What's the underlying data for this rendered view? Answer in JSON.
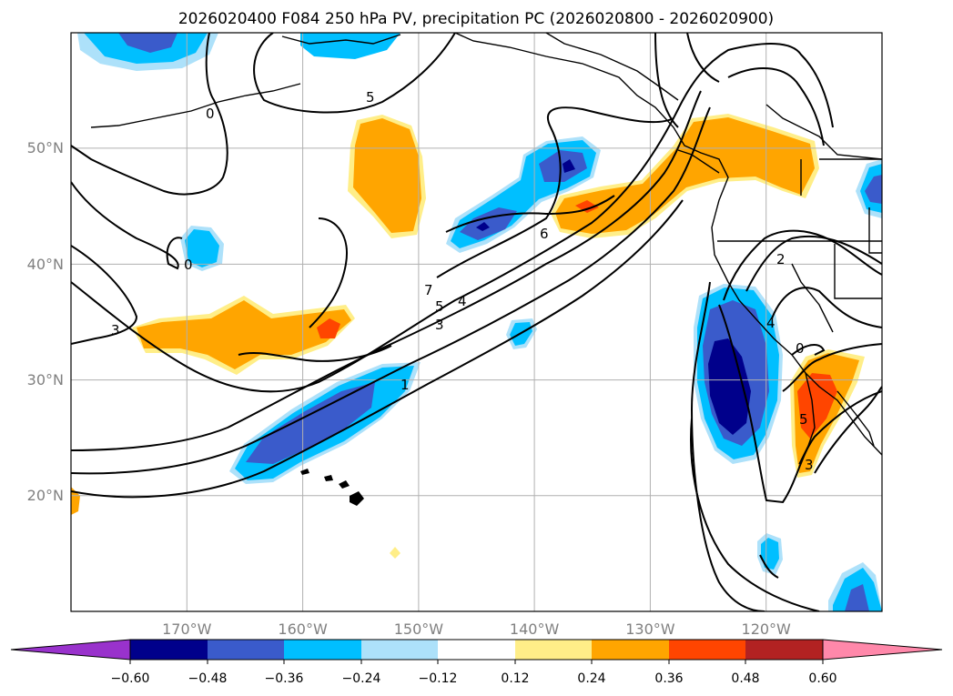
{
  "title": "2026020400 F084 250 hPa PV, precipitation PC (2026020800 - 2026020900)",
  "map": {
    "lon_range": [
      -180,
      -110
    ],
    "lat_range": [
      10,
      60
    ],
    "lon_labels": [
      {
        "lon": -170,
        "text": "170°W"
      },
      {
        "lon": -160,
        "text": "160°W"
      },
      {
        "lon": -150,
        "text": "150°W"
      },
      {
        "lon": -140,
        "text": "140°W"
      },
      {
        "lon": -130,
        "text": "130°W"
      },
      {
        "lon": -120,
        "text": "120°W"
      }
    ],
    "lat_labels": [
      {
        "lat": 50,
        "text": "50°N"
      },
      {
        "lat": 40,
        "text": "40°N"
      },
      {
        "lat": 30,
        "text": "30°N"
      },
      {
        "lat": 20,
        "text": "20°N"
      }
    ],
    "gridlines": true,
    "contour_labels": [
      "5",
      "6",
      "7",
      "5",
      "4",
      "3",
      "1",
      "3",
      "0",
      "0",
      "2",
      "4",
      "0",
      "5",
      "3"
    ]
  },
  "colorbar": {
    "ticks": [
      "−0.60",
      "−0.48",
      "−0.36",
      "−0.24",
      "−0.12",
      "0.12",
      "0.24",
      "0.36",
      "0.48",
      "0.60"
    ],
    "colors": [
      "#9932CC",
      "#00008B",
      "#3A5BCB",
      "#00BFFF",
      "#ADE1FA",
      "#FFFFFF",
      "#FFEE88",
      "#FFA500",
      "#FF4500",
      "#B22222",
      "#FF88AA"
    ],
    "extend": "both"
  }
}
